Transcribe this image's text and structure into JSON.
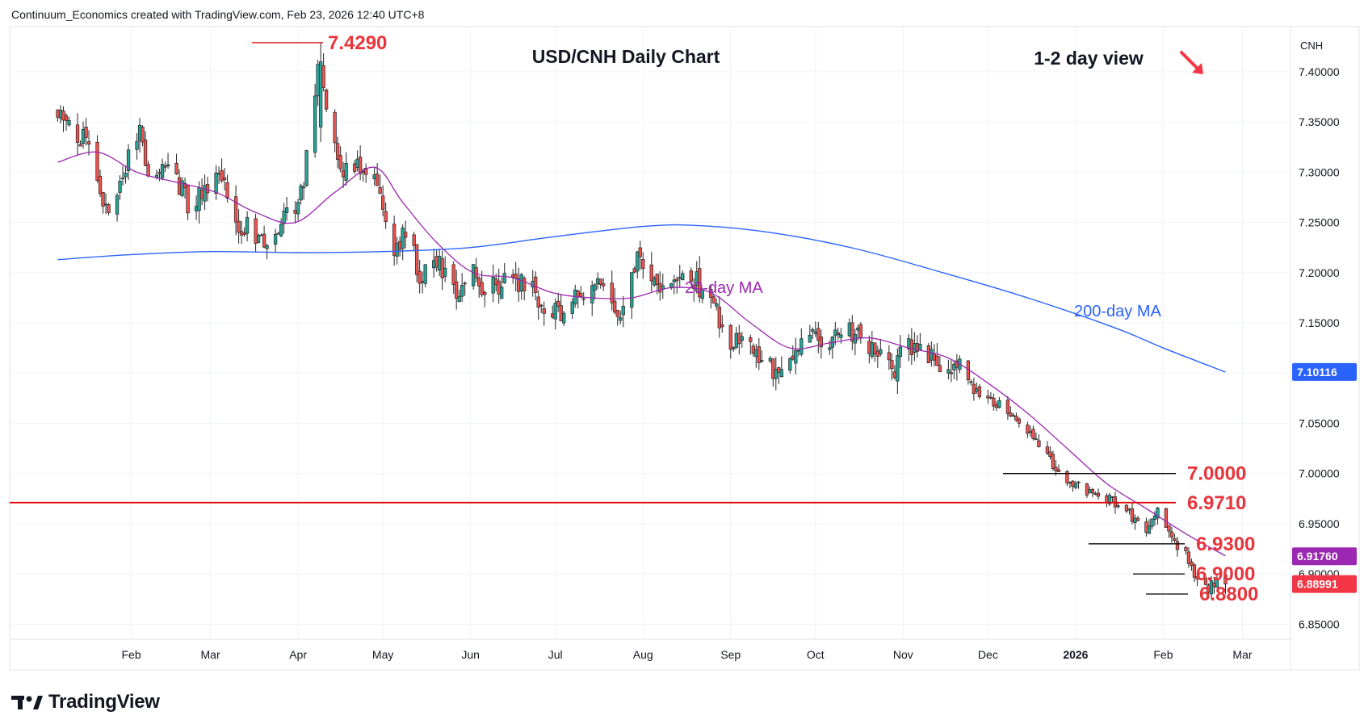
{
  "header": {
    "credit": "Continuum_Economics created with TradingView.com, Feb 23, 2026 12:40 UTC+8"
  },
  "branding": {
    "logo_text": "TradingView",
    "logo_icon": "tradingview-logo-icon"
  },
  "chart_data": {
    "type": "candlestick",
    "title": "USD/CNH Daily Chart",
    "view_label": "1-2 day view",
    "view_icon": "arrow-down-right-icon",
    "currency_label": "CNH",
    "y_ticks": [
      "7.40000",
      "7.35000",
      "7.30000",
      "7.25000",
      "7.20000",
      "7.15000",
      "7.10000",
      "7.05000",
      "7.00000",
      "6.95000",
      "6.90000",
      "6.85000"
    ],
    "x_ticks": [
      "Feb",
      "Mar",
      "Apr",
      "May",
      "Jun",
      "Jul",
      "Aug",
      "Sep",
      "Oct",
      "Nov",
      "Dec",
      "2026",
      "Feb",
      "Mar"
    ],
    "ylim": [
      6.835,
      7.445
    ],
    "grid": true,
    "levels": [
      {
        "label": "7.4290",
        "value": 7.429
      },
      {
        "label": "7.0000",
        "value": 7.0
      },
      {
        "label": "6.9710",
        "value": 6.971
      },
      {
        "label": "6.9300",
        "value": 6.93
      },
      {
        "label": "6.9000",
        "value": 6.9
      },
      {
        "label": "6.8800",
        "value": 6.88
      }
    ],
    "ma_labels": {
      "ma20": "20-day MA",
      "ma200": "200-day MA"
    },
    "price_badges": [
      {
        "label": "7.10116",
        "value": 7.10116,
        "color": "#2962ff"
      },
      {
        "label": "6.91760",
        "value": 6.9176,
        "color": "#9c27b0"
      },
      {
        "label": "6.88991",
        "value": 6.88991,
        "color": "#f23645"
      }
    ],
    "anchors": [
      [
        "2025-01-06",
        7.36
      ],
      [
        "2025-01-16",
        7.33
      ],
      [
        "2025-01-22",
        7.26
      ],
      [
        "2025-01-27",
        7.28
      ],
      [
        "2025-02-04",
        7.35
      ],
      [
        "2025-02-07",
        7.29
      ],
      [
        "2025-02-14",
        7.31
      ],
      [
        "2025-02-21",
        7.27
      ],
      [
        "2025-02-28",
        7.28
      ],
      [
        "2025-03-05",
        7.3
      ],
      [
        "2025-03-10",
        7.24
      ],
      [
        "2025-03-14",
        7.25
      ],
      [
        "2025-03-19",
        7.23
      ],
      [
        "2025-03-24",
        7.24
      ],
      [
        "2025-03-31",
        7.27
      ],
      [
        "2025-04-03",
        7.29
      ],
      [
        "2025-04-08",
        7.4
      ],
      [
        "2025-04-10",
        7.38
      ],
      [
        "2025-04-16",
        7.3
      ],
      [
        "2025-04-22",
        7.31
      ],
      [
        "2025-04-28",
        7.29
      ],
      [
        "2025-05-05",
        7.22
      ],
      [
        "2025-05-09",
        7.24
      ],
      [
        "2025-05-14",
        7.2
      ],
      [
        "2025-05-20",
        7.21
      ],
      [
        "2025-05-27",
        7.18
      ],
      [
        "2025-06-02",
        7.21
      ],
      [
        "2025-06-06",
        7.18
      ],
      [
        "2025-06-12",
        7.19
      ],
      [
        "2025-06-20",
        7.19
      ],
      [
        "2025-06-27",
        7.17
      ],
      [
        "2025-07-03",
        7.16
      ],
      [
        "2025-07-10",
        7.18
      ],
      [
        "2025-07-18",
        7.185
      ],
      [
        "2025-07-25",
        7.16
      ],
      [
        "2025-07-30",
        7.21
      ],
      [
        "2025-08-04",
        7.19
      ],
      [
        "2025-08-12",
        7.19
      ],
      [
        "2025-08-20",
        7.19
      ],
      [
        "2025-08-27",
        7.16
      ],
      [
        "2025-09-01",
        7.12
      ],
      [
        "2025-09-05",
        7.14
      ],
      [
        "2025-09-11",
        7.12
      ],
      [
        "2025-09-17",
        7.1
      ],
      [
        "2025-09-24",
        7.12
      ],
      [
        "2025-09-29",
        7.14
      ],
      [
        "2025-10-06",
        7.13
      ],
      [
        "2025-10-13",
        7.145
      ],
      [
        "2025-10-20",
        7.125
      ],
      [
        "2025-10-24",
        7.12
      ],
      [
        "2025-10-28",
        7.1
      ],
      [
        "2025-11-03",
        7.13
      ],
      [
        "2025-11-10",
        7.12
      ],
      [
        "2025-11-14",
        7.1
      ],
      [
        "2025-11-21",
        7.11
      ],
      [
        "2025-11-26",
        7.08
      ],
      [
        "2025-12-03",
        7.07
      ],
      [
        "2025-12-10",
        7.06
      ],
      [
        "2025-12-17",
        7.04
      ],
      [
        "2025-12-24",
        7.01
      ],
      [
        "2025-12-31",
        6.99
      ],
      [
        "2026-01-06",
        6.98
      ],
      [
        "2026-01-12",
        6.975
      ],
      [
        "2026-01-20",
        6.96
      ],
      [
        "2026-01-26",
        6.94
      ],
      [
        "2026-01-30",
        6.96
      ],
      [
        "2026-02-04",
        6.935
      ],
      [
        "2026-02-09",
        6.92
      ],
      [
        "2026-02-13",
        6.895
      ],
      [
        "2026-02-17",
        6.885
      ],
      [
        "2026-02-20",
        6.895
      ],
      [
        "2026-02-23",
        6.89
      ]
    ],
    "ma20_path": [
      [
        "2025-01-06",
        7.31
      ],
      [
        "2025-01-20",
        7.32
      ],
      [
        "2025-02-03",
        7.3
      ],
      [
        "2025-02-17",
        7.29
      ],
      [
        "2025-03-03",
        7.28
      ],
      [
        "2025-03-17",
        7.26
      ],
      [
        "2025-03-31",
        7.25
      ],
      [
        "2025-04-14",
        7.28
      ],
      [
        "2025-04-28",
        7.305
      ],
      [
        "2025-05-08",
        7.27
      ],
      [
        "2025-05-20",
        7.23
      ],
      [
        "2025-06-02",
        7.2
      ],
      [
        "2025-06-16",
        7.195
      ],
      [
        "2025-06-30",
        7.18
      ],
      [
        "2025-07-14",
        7.175
      ],
      [
        "2025-07-28",
        7.175
      ],
      [
        "2025-08-11",
        7.185
      ],
      [
        "2025-08-25",
        7.18
      ],
      [
        "2025-09-08",
        7.15
      ],
      [
        "2025-09-22",
        7.125
      ],
      [
        "2025-10-06",
        7.13
      ],
      [
        "2025-10-20",
        7.135
      ],
      [
        "2025-11-03",
        7.125
      ],
      [
        "2025-11-17",
        7.115
      ],
      [
        "2025-12-01",
        7.09
      ],
      [
        "2025-12-15",
        7.06
      ],
      [
        "2025-12-29",
        7.025
      ],
      [
        "2026-01-12",
        6.99
      ],
      [
        "2026-01-26",
        6.965
      ],
      [
        "2026-02-09",
        6.94
      ],
      [
        "2026-02-23",
        6.918
      ]
    ],
    "ma200_path": [
      [
        "2025-01-06",
        7.213
      ],
      [
        "2025-02-01",
        7.218
      ],
      [
        "2025-03-01",
        7.221
      ],
      [
        "2025-04-01",
        7.22
      ],
      [
        "2025-05-01",
        7.221
      ],
      [
        "2025-06-01",
        7.225
      ],
      [
        "2025-07-01",
        7.236
      ],
      [
        "2025-08-01",
        7.246
      ],
      [
        "2025-08-20",
        7.247
      ],
      [
        "2025-09-15",
        7.24
      ],
      [
        "2025-10-15",
        7.224
      ],
      [
        "2025-11-15",
        7.2
      ],
      [
        "2025-12-15",
        7.175
      ],
      [
        "2026-01-15",
        7.145
      ],
      [
        "2026-02-01",
        7.125
      ],
      [
        "2026-02-23",
        7.101
      ]
    ],
    "peak": [
      "2025-04-09",
      7.429
    ]
  }
}
